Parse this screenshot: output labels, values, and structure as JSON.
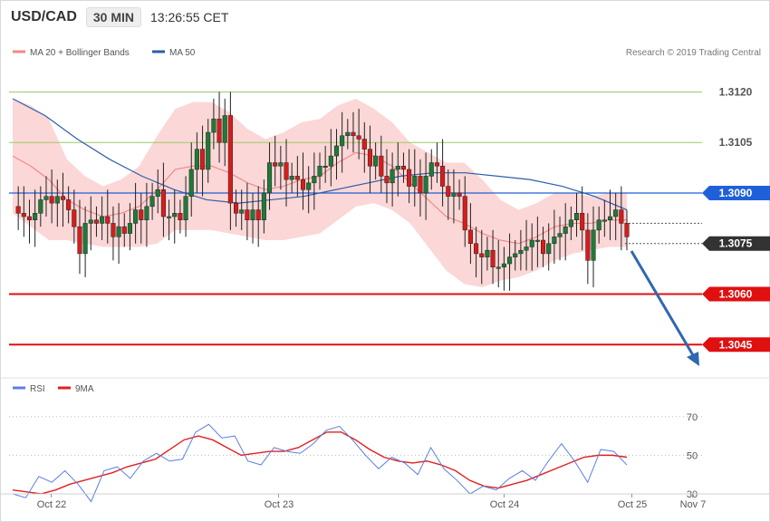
{
  "header": {
    "symbol": "USD/CAD",
    "timeframe": "30 MIN",
    "time": "13:26:55 CET"
  },
  "legend_main": [
    {
      "label": "MA 20 + Bollinger Bands",
      "color": "#f08a8a"
    },
    {
      "label": "MA 50",
      "color": "#2d5fa8"
    }
  ],
  "credit": "Research © 2019 Trading Central",
  "legend_rsi": [
    {
      "label": "RSI",
      "color": "#5b7fe0"
    },
    {
      "label": "9MA",
      "color": "#e02020"
    }
  ],
  "colors": {
    "up": "#1e7a36",
    "down": "#d81b1b",
    "band": "#fcd7d7",
    "ma50": "#2d5fa8",
    "ma20": "#f08a8a",
    "resistance": "#9ccc65",
    "pivot": "#1f5fd8",
    "support": "#e01010",
    "current": "#333333",
    "arrow": "#2f67b0"
  },
  "chart_data": [
    {
      "type": "candlestick",
      "title": "USD/CAD 30 MIN",
      "ylim": [
        1.3037,
        1.3129
      ],
      "yticks": [
        1.3045,
        1.306,
        1.3075,
        1.309,
        1.3105,
        1.312
      ],
      "ytick_labels": [
        "1.3045",
        "1.3060",
        "1.3075",
        "1.3090",
        "1.3105",
        "1.3120"
      ],
      "x_labels": [
        "Oct 22",
        "Oct 23",
        "Oct 24",
        "Oct 25",
        "Nov 7"
      ],
      "levels": {
        "resistances": [
          1.312,
          1.3105
        ],
        "pivot": 1.309,
        "current": 1.3075,
        "supports": [
          1.306,
          1.3045
        ],
        "reference": 1.3081
      },
      "series": [
        {
          "name": "MA 20 + Bollinger Bands",
          "values": [
            1.3101,
            1.3098,
            1.3094,
            1.3088,
            1.3085,
            1.3083,
            1.3084,
            1.3086,
            1.3091,
            1.3097,
            1.3098,
            1.3098,
            1.3096,
            1.3093,
            1.3091,
            1.3092,
            1.3094,
            1.3095,
            1.3099,
            1.3102,
            1.3101,
            1.3098,
            1.3093,
            1.3088,
            1.3083,
            1.3081,
            1.3078,
            1.3076,
            1.3075,
            1.3077,
            1.308,
            1.3081,
            1.3081,
            1.3082,
            1.3082
          ]
        },
        {
          "name": "MA 50",
          "values": [
            1.3118,
            1.3113,
            1.3106,
            1.31,
            1.3095,
            1.3091,
            1.3088,
            1.3087,
            1.3088,
            1.3089,
            1.3091,
            1.3093,
            1.3095,
            1.3096,
            1.3096,
            1.3095,
            1.3094,
            1.3092,
            1.3089,
            1.3085
          ]
        }
      ]
    },
    {
      "type": "line",
      "title": "RSI",
      "ylim": [
        22,
        76
      ],
      "yticks": [
        30,
        50,
        70
      ],
      "ytick_labels": [
        "30",
        "50",
        "70"
      ],
      "series": [
        {
          "name": "RSI",
          "values": [
            30,
            28,
            39,
            36,
            42,
            35,
            26,
            42,
            44,
            38,
            47,
            51,
            47,
            48,
            62,
            66,
            59,
            60,
            47,
            45,
            54,
            52,
            51,
            56,
            63,
            65,
            58,
            50,
            43,
            49,
            46,
            40,
            54,
            43,
            37,
            30,
            34,
            32,
            38,
            42,
            37,
            47,
            56,
            47,
            36,
            53,
            52,
            45
          ]
        },
        {
          "name": "9MA",
          "values": [
            32,
            31,
            30,
            32,
            35,
            37,
            39,
            41,
            44,
            46,
            48,
            53,
            58,
            60,
            58,
            54,
            50,
            51,
            52,
            52,
            54,
            58,
            62,
            62,
            58,
            53,
            49,
            47,
            46,
            47,
            45,
            42,
            37,
            34,
            33,
            35,
            37,
            40,
            43,
            46,
            49,
            50,
            50,
            49
          ]
        }
      ]
    }
  ]
}
